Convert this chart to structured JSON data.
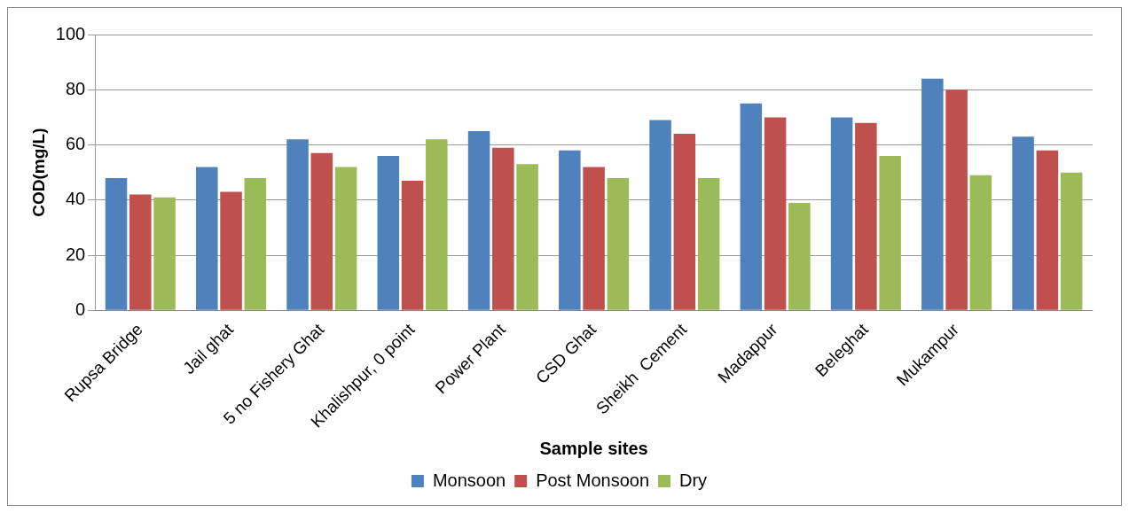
{
  "chart_data": {
    "type": "bar",
    "xlabel": "Sample sites",
    "ylabel": "COD(mg/L)",
    "categories": [
      "Rupsa Bridge",
      "Jail ghat",
      "5 no Fishery Ghat",
      "Khalishpur, 0 point",
      "Power Plant",
      "CSD Ghat",
      "Sheikh  Cement",
      "Madappur",
      "Beleghat",
      "Mukampur",
      null
    ],
    "series": [
      {
        "name": "Monsoon",
        "color": "#4f81bd",
        "values": [
          48,
          52,
          62,
          56,
          65,
          58,
          69,
          75,
          70,
          84,
          63
        ]
      },
      {
        "name": "Post Monsoon",
        "color": "#c0504d",
        "values": [
          42,
          43,
          57,
          47,
          59,
          52,
          64,
          70,
          68,
          80,
          58
        ]
      },
      {
        "name": "Dry",
        "color": "#9bbb59",
        "values": [
          41,
          48,
          52,
          62,
          53,
          48,
          48,
          39,
          56,
          49,
          50
        ]
      }
    ],
    "ylim": [
      0,
      100
    ],
    "yticks": [
      0,
      20,
      40,
      60,
      80,
      100
    ],
    "grid": "y",
    "legend": "bottom"
  }
}
